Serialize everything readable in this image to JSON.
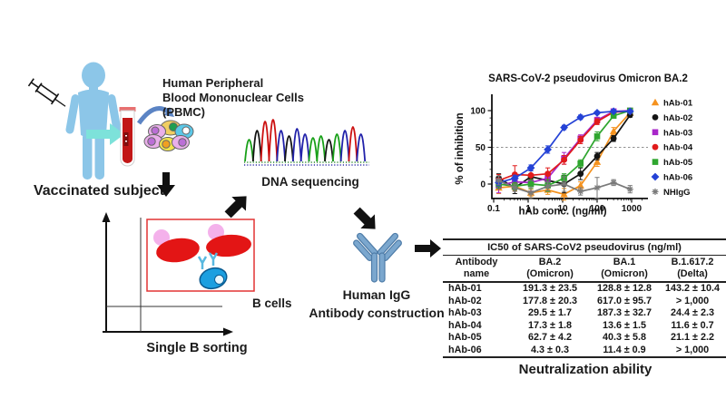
{
  "diagram": {
    "vaccinated_subject_label": "Vaccinated subject",
    "pbmc_label_line1": "Human Peripheral",
    "pbmc_label_line2": "Blood Mononuclear Cells",
    "pbmc_label_line3": "(PBMC)",
    "dna_label": "DNA sequencing",
    "b_cells_label": "B cells",
    "sorting_label": "Single B sorting",
    "igg_label_line1": "Human IgG",
    "igg_label_line2": "Antibody construction",
    "colors": {
      "person_blue": "#8CC6E8",
      "arrow_cyan": "#7DE2DA",
      "blood_red": "#C21717",
      "curved_arrow_blue": "#5B84C4",
      "antibody_blue": "#7BA7CE",
      "sort_gate_red": "#E23333",
      "b_cell_blue": "#1B9FE0",
      "arrow_black": "#111111"
    },
    "dna_peaks": [
      {
        "c": "#18A018",
        "h": 24
      },
      {
        "c": "#151515",
        "h": 34
      },
      {
        "c": "#CC1111",
        "h": 44
      },
      {
        "c": "#CC1111",
        "h": 46
      },
      {
        "c": "#2222AA",
        "h": 34
      },
      {
        "c": "#151515",
        "h": 28
      },
      {
        "c": "#2222AA",
        "h": 36
      },
      {
        "c": "#2222AA",
        "h": 30
      },
      {
        "c": "#18A018",
        "h": 26
      },
      {
        "c": "#18A018",
        "h": 28
      },
      {
        "c": "#151515",
        "h": 24
      },
      {
        "c": "#18A018",
        "h": 30
      },
      {
        "c": "#2222AA",
        "h": 34
      },
      {
        "c": "#CC1111",
        "h": 38
      },
      {
        "c": "#2222AA",
        "h": 30
      }
    ]
  },
  "chart_data": {
    "type": "line",
    "title": "SARS-CoV-2 pseudovirus Omicron BA.2",
    "xlabel": "hAb conc. (ng/ml)",
    "ylabel": "% of inhibition",
    "x_scale": "log",
    "x_ticks": [
      "0.1",
      "1",
      "10",
      "100",
      "1000"
    ],
    "y_ticks": [
      0,
      50,
      100
    ],
    "ylim": [
      -18,
      110
    ],
    "reference_line_y": 50,
    "grid": false,
    "legend_position": "right",
    "x": [
      0.14,
      0.41,
      1.2,
      3.7,
      11,
      33,
      100,
      300,
      900
    ],
    "series": [
      {
        "name": "hAb-01",
        "color": "#F5921E",
        "marker": "triangle",
        "values": [
          -5,
          -3,
          -12,
          -8,
          -14,
          -2,
          30,
          72,
          97
        ],
        "errors": [
          8,
          6,
          5,
          6,
          8,
          5,
          6,
          5,
          3
        ]
      },
      {
        "name": "hAb-02",
        "color": "#141414",
        "marker": "circle",
        "values": [
          8,
          -5,
          10,
          5,
          0,
          14,
          38,
          62,
          94
        ],
        "errors": [
          6,
          8,
          10,
          6,
          12,
          8,
          5,
          4,
          3
        ]
      },
      {
        "name": "hAb-03",
        "color": "#A826C9",
        "marker": "square",
        "values": [
          -2,
          3,
          2,
          8,
          35,
          62,
          87,
          99,
          100
        ],
        "errors": [
          10,
          8,
          12,
          6,
          8,
          5,
          4,
          2,
          2
        ]
      },
      {
        "name": "hAb-04",
        "color": "#E11B1B",
        "marker": "circle",
        "values": [
          5,
          13,
          12,
          14,
          33,
          60,
          85,
          98,
          99
        ],
        "errors": [
          8,
          12,
          6,
          8,
          6,
          5,
          4,
          2,
          2
        ]
      },
      {
        "name": "hAb-05",
        "color": "#2FA62F",
        "marker": "square",
        "values": [
          0,
          -3,
          0,
          -2,
          8,
          28,
          65,
          93,
          100
        ],
        "errors": [
          6,
          5,
          6,
          8,
          6,
          5,
          6,
          3,
          2
        ]
      },
      {
        "name": "hAb-06",
        "color": "#2442D6",
        "marker": "diamond",
        "values": [
          2,
          8,
          22,
          47,
          77,
          91,
          97,
          99,
          99
        ],
        "errors": [
          4,
          4,
          4,
          5,
          3,
          3,
          2,
          2,
          2
        ]
      },
      {
        "name": "NHIgG",
        "color": "#7A7A7A",
        "marker": "asterisk",
        "values": [
          5,
          -5,
          -12,
          -3,
          0,
          -10,
          -5,
          2,
          -7
        ],
        "errors": [
          6,
          5,
          8,
          6,
          10,
          5,
          14,
          4,
          5
        ]
      }
    ]
  },
  "table": {
    "title": "IC50 of SARS-CoV2 pseudovirus (ng/ml)",
    "headers": [
      [
        "Antibody",
        "name"
      ],
      [
        "BA.2",
        "(Omicron)"
      ],
      [
        "BA.1",
        "(Omicron)"
      ],
      [
        "B.1.617.2",
        "(Delta)"
      ]
    ],
    "rows": [
      {
        "name": "hAb-01",
        "ba2": "191.3 ± 23.5",
        "ba1": "128.8 ± 12.8",
        "delta": "143.2 ± 10.4"
      },
      {
        "name": "hAb-02",
        "ba2": "177.8 ± 20.3",
        "ba1": "617.0 ± 95.7",
        "delta": "> 1,000"
      },
      {
        "name": "hAb-03",
        "ba2": "29.5 ± 1.7",
        "ba1": "187.3 ± 32.7",
        "delta": "24.4 ± 2.3"
      },
      {
        "name": "hAb-04",
        "ba2": "17.3 ± 1.8",
        "ba1": "13.6 ± 1.5",
        "delta": "11.6 ± 0.7"
      },
      {
        "name": "hAb-05",
        "ba2": "62.7 ± 4.2",
        "ba1": "40.3 ± 5.8",
        "delta": "21.1 ± 2.2"
      },
      {
        "name": "hAb-06",
        "ba2": "4.3 ± 0.3",
        "ba1": "11.4 ± 0.9",
        "delta": "> 1,000"
      }
    ],
    "caption": "Neutralization ability"
  }
}
